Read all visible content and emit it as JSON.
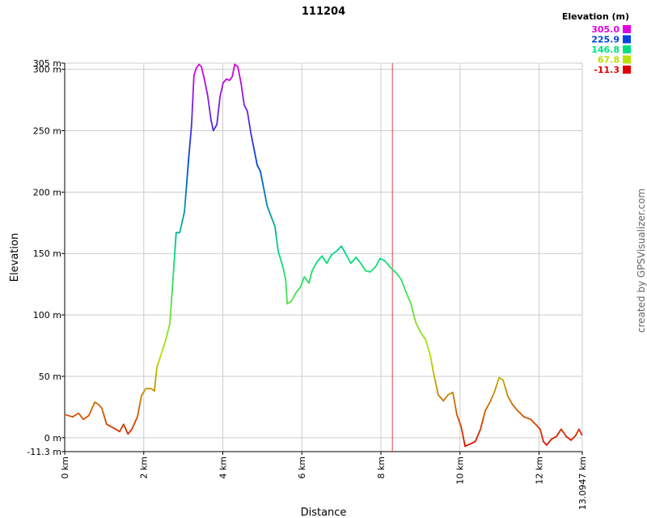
{
  "chart_data": {
    "type": "line",
    "title": "111204",
    "x_label": "Distance",
    "y_label": "Elevation",
    "credit": "created by GPSVisualizer.com",
    "legend_title": "Elevation (m)",
    "color_scale": [
      {
        "value": 305,
        "label": "305.0",
        "color": "#e000e0"
      },
      {
        "value": 225.9,
        "label": "225.9",
        "color": "#0044e0"
      },
      {
        "value": 146.8,
        "label": "146.8",
        "color": "#00e080"
      },
      {
        "value": 67.8,
        "label": "67.8",
        "color": "#b8e000"
      },
      {
        "value": -11.3,
        "label": "-11.3",
        "color": "#e00000"
      }
    ],
    "cursor_x": 8.29,
    "cursor_color": "#e04040",
    "xlim": [
      0,
      13.0947
    ],
    "ylim": [
      -11.3,
      305
    ],
    "xticks": [
      {
        "value": 0,
        "label": "0 km"
      },
      {
        "value": 2,
        "label": "2 km"
      },
      {
        "value": 4,
        "label": "4 km"
      },
      {
        "value": 6,
        "label": "6 km"
      },
      {
        "value": 8,
        "label": "8 km"
      },
      {
        "value": 10,
        "label": "10 km"
      },
      {
        "value": 12,
        "label": "12 km"
      },
      {
        "value": 13.0947,
        "label": "13.0947 km"
      }
    ],
    "yticks": [
      {
        "value": -11.3,
        "label": "-11.3 m"
      },
      {
        "value": 0,
        "label": "0 m"
      },
      {
        "value": 50,
        "label": "50 m"
      },
      {
        "value": 100,
        "label": "100 m"
      },
      {
        "value": 150,
        "label": "150 m"
      },
      {
        "value": 200,
        "label": "200 m"
      },
      {
        "value": 250,
        "label": "250 m"
      },
      {
        "value": 300,
        "label": "300 m"
      },
      {
        "value": 305,
        "label": "305 m"
      }
    ],
    "grid": true,
    "x": [
      0,
      0.2,
      0.35,
      0.47,
      0.61,
      0.76,
      0.86,
      0.94,
      1.06,
      1.23,
      1.39,
      1.49,
      1.6,
      1.7,
      1.84,
      1.94,
      2.05,
      2.19,
      2.27,
      2.33,
      2.46,
      2.56,
      2.66,
      2.74,
      2.82,
      2.91,
      3.03,
      3.13,
      3.21,
      3.27,
      3.33,
      3.4,
      3.46,
      3.54,
      3.62,
      3.7,
      3.76,
      3.85,
      3.93,
      4.01,
      4.09,
      4.17,
      4.24,
      4.3,
      4.38,
      4.46,
      4.54,
      4.62,
      4.71,
      4.79,
      4.87,
      4.95,
      5.03,
      5.12,
      5.2,
      5.32,
      5.4,
      5.52,
      5.59,
      5.63,
      5.73,
      5.85,
      5.97,
      6.06,
      6.18,
      6.26,
      6.38,
      6.51,
      6.63,
      6.75,
      6.88,
      7.0,
      7.12,
      7.24,
      7.37,
      7.49,
      7.61,
      7.73,
      7.86,
      7.98,
      8.1,
      8.23,
      8.39,
      8.51,
      8.63,
      8.76,
      8.88,
      9.0,
      9.13,
      9.25,
      9.33,
      9.45,
      9.58,
      9.7,
      9.82,
      9.92,
      10.03,
      10.13,
      10.19,
      10.27,
      10.39,
      10.52,
      10.64,
      10.76,
      10.88,
      10.99,
      11.09,
      11.21,
      11.33,
      11.46,
      11.62,
      11.79,
      11.91,
      12.03,
      12.11,
      12.19,
      12.32,
      12.44,
      12.56,
      12.69,
      12.81,
      12.93,
      13.01,
      13.09
    ],
    "series": [
      {
        "name": "Elevation",
        "values": [
          19,
          17,
          20,
          15,
          18,
          29,
          27,
          24,
          11,
          8,
          5,
          11,
          3,
          7,
          17,
          34,
          40,
          40,
          38,
          57,
          70,
          80,
          93,
          129,
          167,
          167,
          184,
          225,
          255,
          295,
          301,
          304,
          302,
          291,
          278,
          259,
          250,
          255,
          278,
          289,
          292,
          291,
          294,
          304,
          302,
          289,
          271,
          266,
          248,
          235,
          222,
          217,
          204,
          189,
          182,
          172,
          152,
          139,
          129,
          109,
          111,
          118,
          123,
          131,
          126,
          136,
          143,
          148,
          142,
          149,
          152,
          156,
          149,
          142,
          147,
          142,
          136,
          135,
          139,
          146,
          144,
          139,
          134,
          129,
          119,
          109,
          94,
          86,
          80,
          67,
          53,
          35,
          30,
          35,
          37,
          19,
          9,
          -7,
          -6,
          -5,
          -3,
          7,
          22,
          29,
          38,
          49,
          47,
          34,
          27,
          22,
          17,
          15,
          11,
          7,
          -3,
          -6,
          -1,
          1,
          7,
          1,
          -2,
          2,
          7,
          2
        ]
      }
    ]
  }
}
